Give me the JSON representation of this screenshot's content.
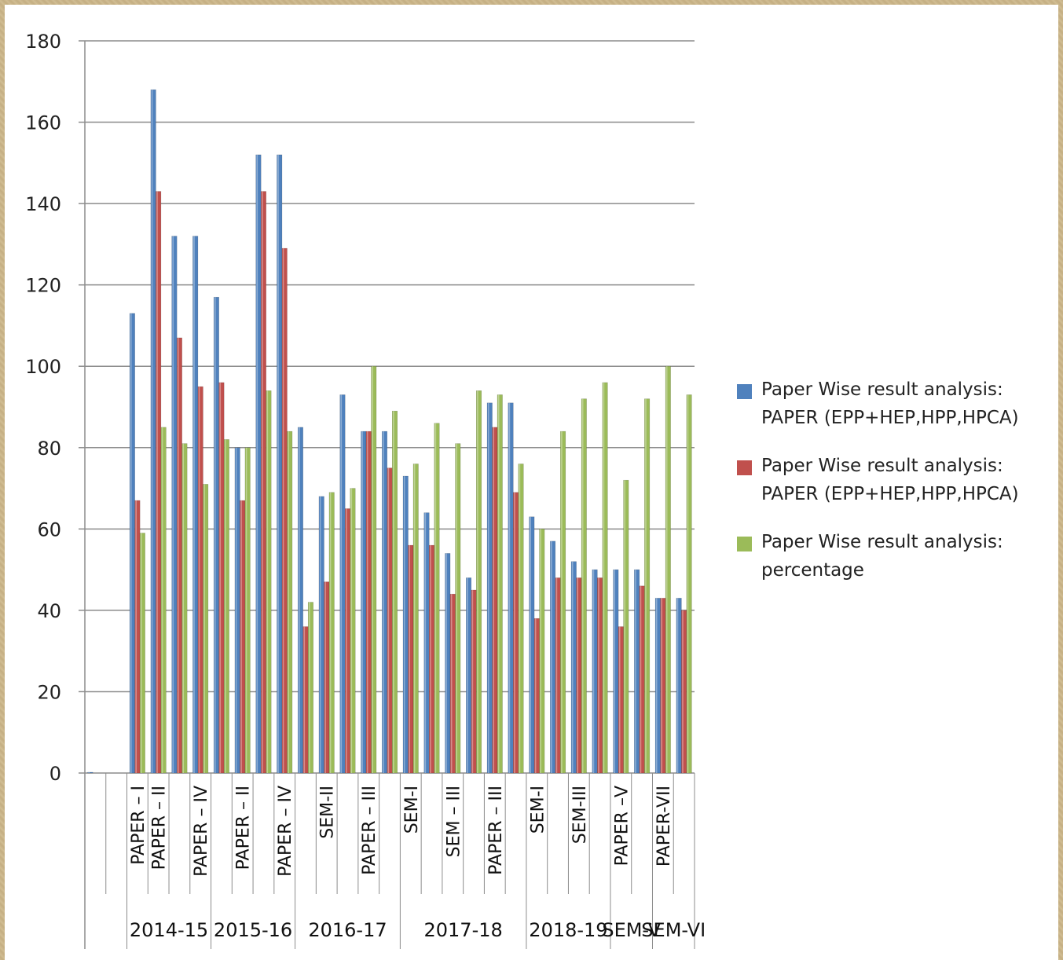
{
  "chart_data": {
    "type": "bar",
    "ylim": [
      0,
      180
    ],
    "y_ticks": [
      "0",
      "20",
      "40",
      "60",
      "80",
      "100",
      "120",
      "140",
      "160",
      "180"
    ],
    "grid": "horizontal",
    "legend_position": "right",
    "categories": [
      "",
      "",
      "PAPER – I",
      "PAPER – II",
      "",
      "PAPER – IV",
      "",
      "PAPER – II",
      "",
      "PAPER – IV",
      "",
      "SEM-II",
      "",
      "PAPER – III",
      "",
      "SEM-I",
      "",
      "SEM – III",
      "",
      "PAPER – III",
      "",
      "SEM-I",
      "",
      "SEM-III",
      "",
      "PAPER –V",
      "",
      "PAPER-VII",
      ""
    ],
    "groups": [
      {
        "label": "2014-15",
        "start": 2,
        "end": 5
      },
      {
        "label": "2015-16",
        "start": 6,
        "end": 9
      },
      {
        "label": "2016-17",
        "start": 10,
        "end": 14
      },
      {
        "label": "2017-18",
        "start": 15,
        "end": 20
      },
      {
        "label": "2018-19",
        "start": 21,
        "end": 24
      },
      {
        "label": "SEM-V",
        "start": 25,
        "end": 26
      },
      {
        "label": "SEM-VI",
        "start": 27,
        "end": 28
      }
    ],
    "series": [
      {
        "name": "Paper Wise result analysis: PAPER (EPP+HEP,HPP,HPCA)",
        "color": "#4f81bd",
        "values": [
          0,
          null,
          113,
          168,
          132,
          132,
          117,
          80,
          152,
          152,
          85,
          68,
          93,
          84,
          84,
          73,
          64,
          54,
          48,
          91,
          91,
          63,
          57,
          52,
          50,
          50,
          50,
          43,
          43
        ]
      },
      {
        "name": "Paper Wise result analysis: PAPER (EPP+HEP,HPP,HPCA)",
        "color": "#c0504d",
        "values": [
          null,
          null,
          67,
          143,
          107,
          95,
          96,
          67,
          143,
          129,
          36,
          47,
          65,
          84,
          75,
          56,
          56,
          44,
          45,
          85,
          69,
          38,
          48,
          48,
          48,
          36,
          46,
          43,
          40
        ]
      },
      {
        "name": "Paper Wise result analysis: percentage",
        "color": "#9bbb59",
        "values": [
          null,
          null,
          59,
          85,
          81,
          71,
          82,
          80,
          94,
          84,
          42,
          69,
          70,
          100,
          89,
          76,
          86,
          81,
          94,
          93,
          76,
          60,
          84,
          92,
          96,
          72,
          92,
          100,
          93
        ]
      }
    ]
  },
  "legend": {
    "items": [
      {
        "line1": "Paper Wise result analysis:",
        "line2": "PAPER (EPP+HEP,HPP,HPCA)",
        "color": "#4f81bd"
      },
      {
        "line1": "Paper Wise result analysis:",
        "line2": "PAPER (EPP+HEP,HPP,HPCA)",
        "color": "#c0504d"
      },
      {
        "line1": "Paper Wise result analysis:",
        "line2": "percentage",
        "color": "#9bbb59"
      }
    ]
  }
}
